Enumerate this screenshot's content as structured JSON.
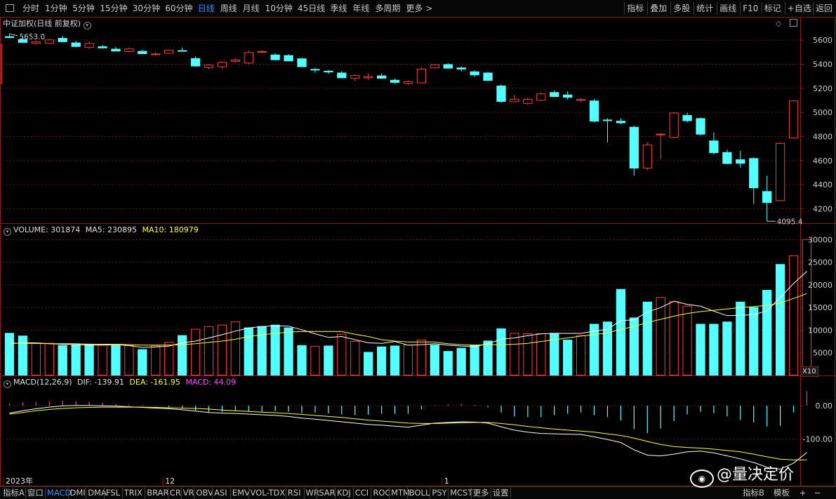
{
  "topbar": {
    "periods": [
      "分时",
      "1分钟",
      "5分钟",
      "15分钟",
      "30分钟",
      "60分钟",
      "日线",
      "周线",
      "月线",
      "10分钟",
      "45日线",
      "季线",
      "年线",
      "多周期",
      "更多 >"
    ],
    "active_period": "日线",
    "actions": [
      "指标",
      "叠加",
      "多股",
      "统计",
      "画线",
      "F10",
      "标记",
      "+自选",
      "返回"
    ]
  },
  "main_panel": {
    "title": "中证加权(日线 前复权)",
    "high_label": "5653.0",
    "low_label": "4095.4"
  },
  "volume_panel": {
    "label": "VOLUME: 301874",
    "ma5": "MA5: 230895",
    "ma10": "MA10: 180979",
    "scale_label": "X10"
  },
  "macd_panel": {
    "label": "MACD(12,26,9)",
    "dif": "DIF: -139.91",
    "dea": "DEA: -161.95",
    "macd": "MACD: 44.09"
  },
  "x_axis": {
    "labels": [
      "2023年",
      "12",
      "1"
    ]
  },
  "bottombar": {
    "tabs": [
      "指标A",
      "窗口",
      "MACD",
      "DMI",
      "DMA",
      "FSL",
      "TRIX",
      "BRAR",
      "CR",
      "VR",
      "OBV",
      "ASI",
      "EMV",
      "VOL-TDX",
      "RSI",
      "WR",
      "SAR",
      "KDJ",
      "CCI",
      "ROC",
      "MTM",
      "BOLL",
      "PSY",
      "MCST",
      "更多",
      "设置"
    ],
    "active_tab": "MACD",
    "right_tabs": [
      "指标B",
      "模板",
      "+",
      "−"
    ]
  },
  "watermark": "@量决定价",
  "colors": {
    "up": "#ff3b3b",
    "down": "#54ffff",
    "dif": "#ffffff",
    "dea": "#ffff40",
    "macd_label": "#ff40ff",
    "frame": "#8b1a1a"
  },
  "chart_data": [
    {
      "type": "candlestick",
      "title": "中证加权(日线 前复权)",
      "yticks": [
        4200,
        4400,
        4600,
        4800,
        5000,
        5200,
        5400,
        5600
      ],
      "ylim": [
        4080,
        5700
      ],
      "candles": [
        {
          "o": 5632,
          "h": 5653,
          "l": 5616,
          "c": 5624
        },
        {
          "o": 5608,
          "h": 5626,
          "l": 5582,
          "c": 5584
        },
        {
          "o": 5576,
          "h": 5596,
          "l": 5565,
          "c": 5588
        },
        {
          "o": 5578,
          "h": 5612,
          "l": 5572,
          "c": 5605
        },
        {
          "o": 5618,
          "h": 5636,
          "l": 5584,
          "c": 5590
        },
        {
          "o": 5580,
          "h": 5594,
          "l": 5542,
          "c": 5550
        },
        {
          "o": 5542,
          "h": 5588,
          "l": 5528,
          "c": 5575
        },
        {
          "o": 5548,
          "h": 5560,
          "l": 5530,
          "c": 5538
        },
        {
          "o": 5528,
          "h": 5544,
          "l": 5508,
          "c": 5512
        },
        {
          "o": 5508,
          "h": 5538,
          "l": 5502,
          "c": 5530
        },
        {
          "o": 5510,
          "h": 5520,
          "l": 5484,
          "c": 5490
        },
        {
          "o": 5486,
          "h": 5500,
          "l": 5472,
          "c": 5488
        },
        {
          "o": 5494,
          "h": 5522,
          "l": 5486,
          "c": 5518
        },
        {
          "o": 5516,
          "h": 5538,
          "l": 5504,
          "c": 5510
        },
        {
          "o": 5450,
          "h": 5462,
          "l": 5380,
          "c": 5388
        },
        {
          "o": 5375,
          "h": 5402,
          "l": 5358,
          "c": 5396
        },
        {
          "o": 5382,
          "h": 5425,
          "l": 5360,
          "c": 5418
        },
        {
          "o": 5428,
          "h": 5448,
          "l": 5412,
          "c": 5438
        },
        {
          "o": 5412,
          "h": 5512,
          "l": 5400,
          "c": 5500
        },
        {
          "o": 5504,
          "h": 5518,
          "l": 5490,
          "c": 5508
        },
        {
          "o": 5480,
          "h": 5490,
          "l": 5432,
          "c": 5440
        },
        {
          "o": 5475,
          "h": 5484,
          "l": 5424,
          "c": 5430
        },
        {
          "o": 5448,
          "h": 5454,
          "l": 5376,
          "c": 5382
        },
        {
          "o": 5360,
          "h": 5370,
          "l": 5328,
          "c": 5355
        },
        {
          "o": 5345,
          "h": 5354,
          "l": 5320,
          "c": 5338
        },
        {
          "o": 5330,
          "h": 5342,
          "l": 5282,
          "c": 5290
        },
        {
          "o": 5285,
          "h": 5316,
          "l": 5258,
          "c": 5308
        },
        {
          "o": 5290,
          "h": 5322,
          "l": 5270,
          "c": 5300
        },
        {
          "o": 5306,
          "h": 5322,
          "l": 5280,
          "c": 5286
        },
        {
          "o": 5270,
          "h": 5280,
          "l": 5238,
          "c": 5252
        },
        {
          "o": 5242,
          "h": 5266,
          "l": 5228,
          "c": 5258
        },
        {
          "o": 5248,
          "h": 5372,
          "l": 5240,
          "c": 5362
        },
        {
          "o": 5372,
          "h": 5402,
          "l": 5364,
          "c": 5398
        },
        {
          "o": 5400,
          "h": 5408,
          "l": 5366,
          "c": 5370
        },
        {
          "o": 5372,
          "h": 5382,
          "l": 5340,
          "c": 5362
        },
        {
          "o": 5340,
          "h": 5350,
          "l": 5296,
          "c": 5314
        },
        {
          "o": 5330,
          "h": 5336,
          "l": 5260,
          "c": 5268
        },
        {
          "o": 5222,
          "h": 5232,
          "l": 5080,
          "c": 5094
        },
        {
          "o": 5092,
          "h": 5145,
          "l": 5084,
          "c": 5112
        },
        {
          "o": 5078,
          "h": 5124,
          "l": 5064,
          "c": 5112
        },
        {
          "o": 5104,
          "h": 5166,
          "l": 5092,
          "c": 5156
        },
        {
          "o": 5168,
          "h": 5182,
          "l": 5126,
          "c": 5134
        },
        {
          "o": 5148,
          "h": 5176,
          "l": 5108,
          "c": 5128
        },
        {
          "o": 5102,
          "h": 5118,
          "l": 5084,
          "c": 5110
        },
        {
          "o": 5098,
          "h": 5108,
          "l": 4916,
          "c": 4930
        },
        {
          "o": 4940,
          "h": 4952,
          "l": 4750,
          "c": 4936
        },
        {
          "o": 4930,
          "h": 4950,
          "l": 4902,
          "c": 4916
        },
        {
          "o": 4880,
          "h": 4890,
          "l": 4476,
          "c": 4540
        },
        {
          "o": 4540,
          "h": 4754,
          "l": 4520,
          "c": 4732
        },
        {
          "o": 4816,
          "h": 4830,
          "l": 4610,
          "c": 4822
        },
        {
          "o": 4796,
          "h": 5002,
          "l": 4784,
          "c": 4998
        },
        {
          "o": 4978,
          "h": 4998,
          "l": 4916,
          "c": 4934
        },
        {
          "o": 4952,
          "h": 4958,
          "l": 4808,
          "c": 4822
        },
        {
          "o": 4766,
          "h": 4832,
          "l": 4650,
          "c": 4668
        },
        {
          "o": 4670,
          "h": 4690,
          "l": 4570,
          "c": 4578
        },
        {
          "o": 4610,
          "h": 4680,
          "l": 4542,
          "c": 4580
        },
        {
          "o": 4620,
          "h": 4628,
          "l": 4240,
          "c": 4376
        },
        {
          "o": 4346,
          "h": 4474,
          "l": 4096,
          "c": 4254
        },
        {
          "o": 4270,
          "h": 4752,
          "l": 4262,
          "c": 4746
        },
        {
          "o": 4790,
          "h": 5102,
          "l": 4782,
          "c": 5098
        }
      ]
    },
    {
      "type": "bar",
      "title": "VOLUME",
      "yticks": [
        5000,
        10000,
        15000,
        20000,
        25000,
        30000
      ],
      "ylim": [
        0,
        31000
      ],
      "values": [
        9400,
        8800,
        7200,
        7200,
        6700,
        6900,
        7000,
        6800,
        6700,
        6700,
        5800,
        6600,
        7400,
        8900,
        10300,
        10900,
        11200,
        11900,
        10600,
        10900,
        11200,
        10600,
        6700,
        6500,
        6600,
        9200,
        7600,
        5200,
        6400,
        6600,
        6800,
        7900,
        6800,
        5400,
        6100,
        6800,
        7700,
        10400,
        9400,
        9300,
        9300,
        9400,
        7900,
        8900,
        11400,
        11900,
        19100,
        12800,
        16300,
        17300,
        16400,
        15400,
        11400,
        11400,
        11900,
        16300,
        15100,
        18900,
        24600,
        26500,
        30100
      ],
      "up": [
        false,
        false,
        true,
        true,
        false,
        false,
        false,
        true,
        false,
        true,
        false,
        true,
        true,
        false,
        true,
        true,
        true,
        true,
        false,
        false,
        false,
        false,
        false,
        true,
        false,
        true,
        true,
        false,
        false,
        false,
        true,
        true,
        false,
        false,
        false,
        false,
        false,
        false,
        true,
        true,
        true,
        false,
        false,
        true,
        false,
        false,
        false,
        false,
        false,
        true,
        true,
        true,
        false,
        false,
        false,
        false,
        false,
        false,
        false,
        true,
        true
      ],
      "ma5": [
        7000,
        7200,
        7200,
        7000,
        6900,
        6800,
        6700,
        6700,
        6800,
        6600,
        6200,
        6300,
        6500,
        7200,
        7600,
        8300,
        9000,
        9800,
        10500,
        10800,
        11000,
        10900,
        10100,
        9200,
        8400,
        8600,
        7900,
        7200,
        7100,
        7500,
        6700,
        6800,
        7000,
        6700,
        6500,
        6400,
        7000,
        8000,
        8300,
        8800,
        9200,
        9300,
        9300,
        9300,
        9800,
        10200,
        12100,
        12300,
        14000,
        15000,
        16400,
        15700,
        15300,
        14200,
        13200,
        13300,
        13400,
        14300,
        17200,
        20300,
        23000
      ],
      "ma10": [
        7200,
        7100,
        7100,
        7000,
        7000,
        7000,
        6900,
        6900,
        6900,
        6800,
        6700,
        6700,
        6700,
        6800,
        7000,
        7300,
        7600,
        8000,
        8600,
        9000,
        9300,
        9600,
        9700,
        9700,
        9700,
        9700,
        9100,
        8600,
        7900,
        7600,
        7400,
        7400,
        7400,
        7000,
        6800,
        6700,
        6800,
        6800,
        6900,
        7100,
        7500,
        7900,
        8300,
        8700,
        9000,
        9400,
        10200,
        10800,
        11700,
        12400,
        13100,
        13700,
        14100,
        14400,
        14700,
        15000,
        15200,
        15500,
        16000,
        17000,
        18100
      ]
    },
    {
      "type": "line",
      "title": "MACD(12,26,9)",
      "yticks": [
        0.0,
        -100.0
      ],
      "ylim": [
        -210,
        55
      ],
      "dif": [
        -22,
        -15,
        -9,
        -4,
        0,
        1,
        1,
        0,
        -1,
        -3,
        -5,
        -7,
        -9,
        -12,
        -16,
        -20,
        -22,
        -23,
        -25,
        -27,
        -29,
        -32,
        -37,
        -40,
        -44,
        -48,
        -52,
        -56,
        -58,
        -61,
        -64,
        -58,
        -52,
        -50,
        -48,
        -49,
        -52,
        -63,
        -73,
        -79,
        -83,
        -84,
        -85,
        -86,
        -93,
        -101,
        -110,
        -132,
        -148,
        -150,
        -145,
        -138,
        -136,
        -141,
        -150,
        -159,
        -170,
        -184,
        -190,
        -172,
        -140
      ],
      "dea": [
        -25,
        -20,
        -15,
        -11,
        -8,
        -6,
        -5,
        -4,
        -4,
        -4,
        -4,
        -5,
        -6,
        -7,
        -8,
        -10,
        -13,
        -15,
        -17,
        -19,
        -21,
        -23,
        -26,
        -29,
        -32,
        -35,
        -39,
        -43,
        -46,
        -49,
        -52,
        -53,
        -53,
        -52,
        -51,
        -50,
        -50,
        -53,
        -57,
        -62,
        -66,
        -70,
        -73,
        -76,
        -79,
        -84,
        -89,
        -97,
        -107,
        -116,
        -122,
        -125,
        -127,
        -130,
        -134,
        -138,
        -145,
        -153,
        -160,
        -162,
        -162
      ],
      "macd": [
        6,
        10,
        12,
        14,
        16,
        14,
        12,
        9,
        6,
        4,
        2,
        -1,
        -4,
        -9,
        -15,
        -19,
        -18,
        -16,
        -17,
        -18,
        -16,
        -18,
        -22,
        -21,
        -23,
        -26,
        -28,
        -27,
        -24,
        -24,
        -24,
        -10,
        2,
        4,
        6,
        2,
        -4,
        -20,
        -32,
        -34,
        -34,
        -28,
        -24,
        -20,
        -28,
        -34,
        -44,
        -70,
        -82,
        -68,
        -46,
        -26,
        -18,
        -22,
        -32,
        -42,
        -50,
        -62,
        -60,
        -20,
        44
      ]
    }
  ]
}
